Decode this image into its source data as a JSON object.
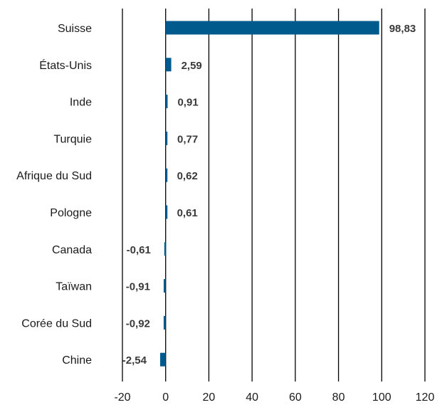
{
  "chart_data": {
    "type": "bar",
    "orientation": "horizontal",
    "title": "",
    "xlabel": "",
    "ylabel": "",
    "categories": [
      "Suisse",
      "États-Unis",
      "Inde",
      "Turquie",
      "Afrique du Sud",
      "Pologne",
      "Canada",
      "Taïwan",
      "Corée du Sud",
      "Chine"
    ],
    "values": [
      98.83,
      2.59,
      0.91,
      0.77,
      0.62,
      0.61,
      -0.61,
      -0.91,
      -0.92,
      -2.54
    ],
    "data_labels": [
      "98,83",
      "2,59",
      "0,91",
      "0,77",
      "0,62",
      "0,61",
      "-0,61",
      "-0,91",
      "-0,92",
      "-2,54"
    ],
    "xlim": [
      -20,
      120
    ],
    "xticks": [
      -20,
      0,
      20,
      40,
      60,
      80,
      100,
      120
    ],
    "xtick_labels": [
      "-20",
      "0",
      "20",
      "40",
      "60",
      "80",
      "100",
      "120"
    ],
    "grid": "vertical",
    "legend": "none",
    "bar_color": "#005a8c"
  }
}
